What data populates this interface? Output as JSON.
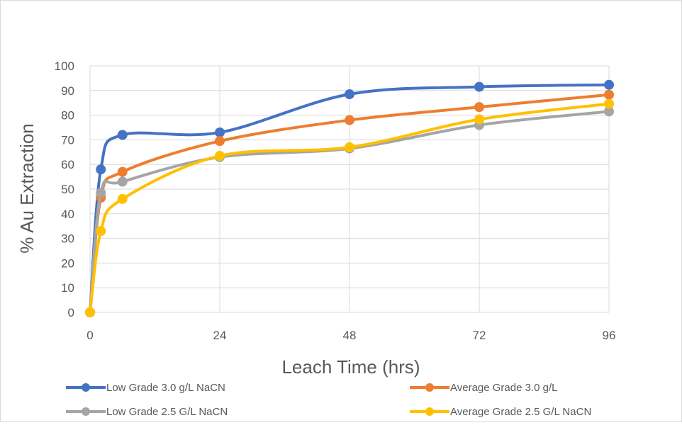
{
  "chart_data": {
    "type": "line",
    "xlabel": "Leach Time (hrs)",
    "ylabel": "% Au Extraction",
    "xlim": [
      0,
      96
    ],
    "ylim": [
      0,
      100
    ],
    "x_ticks": [
      0,
      24,
      48,
      72,
      96
    ],
    "y_ticks": [
      0,
      10,
      20,
      30,
      40,
      50,
      60,
      70,
      80,
      90,
      100
    ],
    "grid": "horizontal",
    "legend_position": "bottom",
    "x": [
      0,
      2,
      6,
      24,
      48,
      72,
      96
    ],
    "series": [
      {
        "name": "Low Grade 3.0 g/L NaCN",
        "color": "#4472c4",
        "values": [
          0,
          58,
          72,
          73,
          88.5,
          91.5,
          92.3
        ]
      },
      {
        "name": "Average Grade 3.0 g/L",
        "color": "#ed7d31",
        "values": [
          0,
          46.5,
          57,
          69.5,
          78,
          83.3,
          88.3
        ]
      },
      {
        "name": "Low Grade 2.5 G/L NaCN",
        "color": "#a5a5a5",
        "values": [
          0,
          48.5,
          53,
          63,
          66.5,
          76,
          81.5
        ]
      },
      {
        "name": "Average Grade 2.5 G/L NaCN",
        "color": "#ffc000",
        "values": [
          0,
          33,
          46,
          63.5,
          67,
          78.3,
          84.6
        ]
      }
    ]
  }
}
